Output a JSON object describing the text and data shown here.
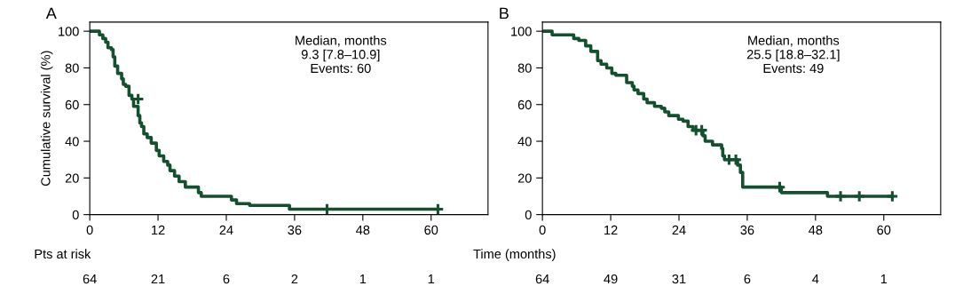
{
  "chart_data": [
    {
      "type": "step",
      "title": "A",
      "ylabel": "Cumulative survival (%)",
      "xlim": [
        0,
        70
      ],
      "ylim": [
        0,
        105
      ],
      "xticks": [
        0,
        12,
        24,
        36,
        48,
        60
      ],
      "yticks": [
        0,
        20,
        40,
        60,
        80,
        100
      ],
      "grid": false,
      "legend": false,
      "series": [
        {
          "color": "#13502d",
          "x": [
            0,
            1.7,
            2.3,
            2.8,
            3.2,
            3.8,
            4.1,
            4.4,
            4.9,
            5.6,
            5.9,
            6.3,
            6.9,
            7.4,
            7.7,
            8.5,
            8.8,
            9.1,
            9.5,
            10.1,
            10.8,
            11.7,
            12.2,
            13.0,
            13.7,
            14.1,
            14.9,
            15.7,
            16.8,
            19.1,
            19.6,
            24.9,
            25.8,
            28.1,
            35.1,
            61.2
          ],
          "values": [
            100,
            98,
            96,
            94,
            91,
            90,
            86,
            81,
            77,
            74,
            71,
            70,
            65,
            63,
            59,
            54,
            50,
            48,
            44,
            42,
            39,
            35,
            32,
            29,
            27,
            24,
            21,
            18,
            15,
            12,
            10,
            8,
            6,
            5,
            3,
            3
          ]
        },
        {
          "type": "scatter",
          "marker": "cross",
          "color": "#13502d",
          "x": [
            8.5,
            41.7,
            61.2
          ],
          "values": [
            63,
            3,
            3
          ]
        }
      ],
      "annotations": [
        "Median, months\n9.3 [7.8–10.9]\nEvents: 60",
        "Pts at risk",
        "64",
        "21",
        "6",
        "2",
        "1",
        "1"
      ]
    },
    {
      "type": "step",
      "title": "B",
      "xlabel": "Time (months)",
      "xlim": [
        0,
        70
      ],
      "ylim": [
        0,
        105
      ],
      "xticks": [
        0,
        12,
        24,
        36,
        48,
        60
      ],
      "yticks": [
        0,
        20,
        40,
        60,
        80,
        100
      ],
      "grid": false,
      "legend": false,
      "series": [
        {
          "color": "#13502d",
          "x": [
            0,
            1.7,
            5.5,
            6.4,
            7.6,
            8.5,
            9.7,
            10.3,
            11.3,
            12.2,
            12.9,
            14.8,
            15.8,
            16.1,
            16.8,
            17.8,
            18.4,
            19.7,
            20.9,
            21.5,
            22.2,
            23.9,
            24.7,
            25.6,
            26.5,
            28.2,
            28.6,
            29.9,
            31.5,
            31.7,
            32.0,
            34.3,
            34.8,
            35.2,
            42.0,
            50.1,
            61.5
          ],
          "values": [
            100,
            98,
            96,
            95,
            92,
            89,
            84,
            82,
            80,
            77,
            76,
            72,
            70,
            68,
            66,
            63,
            61,
            59,
            58,
            56,
            54,
            52,
            51,
            48,
            46,
            43,
            40,
            38,
            36,
            32,
            30,
            27,
            23,
            15,
            12,
            10,
            10
          ]
        },
        {
          "type": "scatter",
          "marker": "cross",
          "color": "#13502d",
          "x": [
            27.0,
            28.0,
            32.8,
            34.0,
            41.7,
            52.4,
            55.7,
            61.5
          ],
          "values": [
            46,
            46,
            30,
            30,
            15,
            10,
            10,
            10
          ]
        }
      ],
      "annotations": [
        "Median, months\n25.5 [18.8–32.1]\nEvents: 49",
        "64",
        "49",
        "31",
        "6",
        "4",
        "1"
      ]
    }
  ]
}
